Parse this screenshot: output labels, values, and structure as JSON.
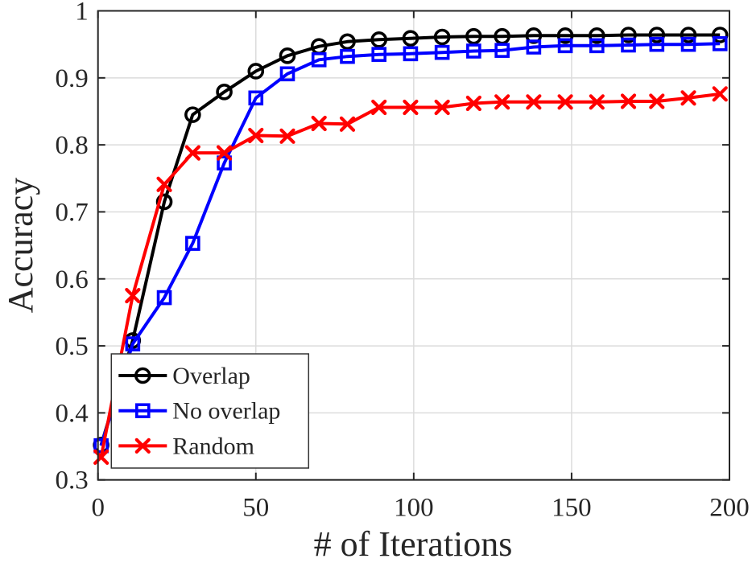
{
  "chart_data": {
    "type": "line",
    "title": "",
    "xlabel": "# of Iterations",
    "ylabel": "Accuracy",
    "xlim": [
      0,
      200
    ],
    "ylim": [
      0.3,
      1.0
    ],
    "xticks": [
      0,
      50,
      100,
      150,
      200
    ],
    "xtick_labels": [
      "0",
      "50",
      "100",
      "150",
      "200"
    ],
    "yticks": [
      0.3,
      0.4,
      0.5,
      0.6,
      0.7,
      0.8,
      0.9,
      1.0
    ],
    "ytick_labels": [
      "0.3",
      "0.4",
      "0.5",
      "0.6",
      "0.7",
      "0.8",
      "0.9",
      "1"
    ],
    "grid": true,
    "legend_position": "lower-left",
    "x": [
      1,
      11,
      21,
      30,
      40,
      50,
      60,
      70,
      79,
      89,
      99,
      109,
      119,
      128,
      138,
      148,
      158,
      168,
      177,
      187,
      197
    ],
    "series": [
      {
        "name": "Overlap",
        "color": "#000000",
        "marker": "circle",
        "values": [
          0.352,
          0.508,
          0.715,
          0.845,
          0.879,
          0.91,
          0.933,
          0.947,
          0.954,
          0.957,
          0.959,
          0.961,
          0.962,
          0.962,
          0.963,
          0.963,
          0.963,
          0.964,
          0.964,
          0.964,
          0.964
        ]
      },
      {
        "name": "No overlap",
        "color": "#0000ff",
        "marker": "square",
        "values": [
          0.351,
          0.503,
          0.572,
          0.653,
          0.773,
          0.87,
          0.906,
          0.927,
          0.932,
          0.935,
          0.936,
          0.938,
          0.94,
          0.941,
          0.946,
          0.948,
          0.948,
          0.949,
          0.95,
          0.95,
          0.951
        ]
      },
      {
        "name": "Random",
        "color": "#ff0000",
        "marker": "x",
        "values": [
          0.334,
          0.575,
          0.741,
          0.788,
          0.788,
          0.814,
          0.813,
          0.832,
          0.831,
          0.856,
          0.856,
          0.856,
          0.862,
          0.864,
          0.864,
          0.864,
          0.864,
          0.865,
          0.865,
          0.87,
          0.876
        ]
      }
    ]
  },
  "style_colors": {
    "axis_frame": "#262626",
    "grid": "#dcdcdc",
    "tick_text": "#262626",
    "legend_border": "#333333",
    "background": "#ffffff"
  }
}
